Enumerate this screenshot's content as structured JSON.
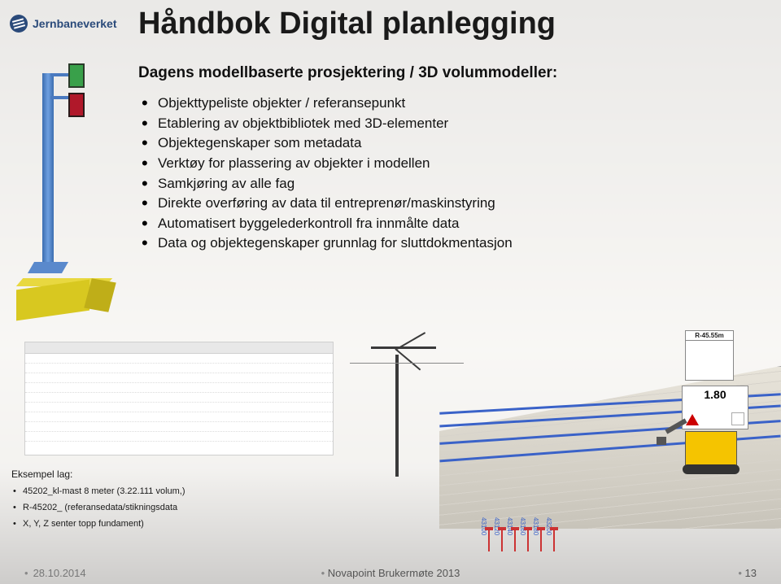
{
  "logo": {
    "text": "Jernbaneverket"
  },
  "title": "Håndbok Digital planlegging",
  "subtitle": "Dagens modellbaserte prosjektering / 3D volummodeller:",
  "bullets": [
    "Objekttypeliste objekter / referansepunkt",
    "Etablering av objektbibliotek med 3D-elementer",
    "Objektegenskaper som metadata",
    "Verktøy for plassering av objekter i modellen",
    "Samkjøring av alle fag",
    "Direkte overføring av data til entreprenør/maskinstyring",
    "Automatisert byggelederkontroll fra innmålte data",
    "Data og objektegenskaper grunnlag for sluttdokmentasjon"
  ],
  "example": {
    "heading": "Eksempel lag:",
    "items": [
      "45202_kl-mast 8 meter (3.22.111 volum,)",
      "R-45202_ (referansedata/stikningsdata",
      "X, Y, Z senter topp fundament)"
    ]
  },
  "sign": {
    "speed_value": "1.80",
    "box_label": "R-45.55m"
  },
  "stake_labels": [
    "43100",
    "43120",
    "43140",
    "43160",
    "43180",
    "43200"
  ],
  "footer": {
    "date": "28.10.2014",
    "center": "Novapoint Brukermøte 2013",
    "page": "13"
  },
  "colors": {
    "logo": "#2a4a7a",
    "rail": "#3a62c8",
    "signal_green": "#39a04a",
    "signal_red": "#b0182a",
    "beam": "#d8c820",
    "excavator": "#f5c400"
  }
}
